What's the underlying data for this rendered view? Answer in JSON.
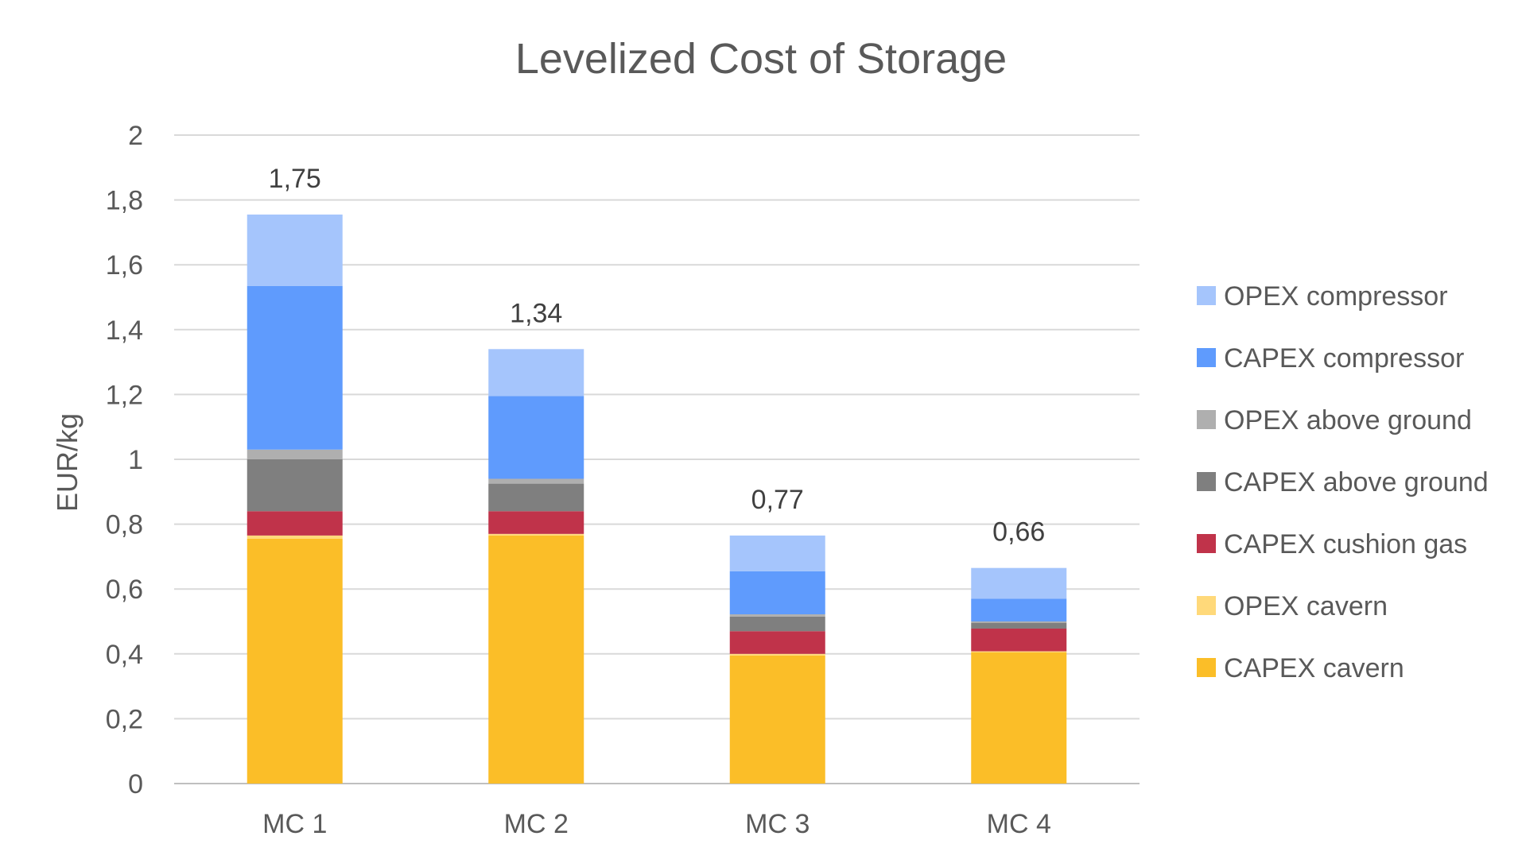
{
  "chart_data": {
    "type": "bar",
    "stacked": true,
    "title": "Levelized Cost of Storage",
    "xlabel": "",
    "ylabel": "EUR/kg",
    "ylim": [
      0,
      2
    ],
    "yticks": [
      "0",
      "0,2",
      "0,4",
      "0,6",
      "0,8",
      "1",
      "1,2",
      "1,4",
      "1,6",
      "1,8",
      "2"
    ],
    "ytick_values": [
      0,
      0.2,
      0.4,
      0.6,
      0.8,
      1.0,
      1.2,
      1.4,
      1.6,
      1.8,
      2.0
    ],
    "grid": true,
    "legend_position": "right",
    "categories": [
      "MC 1",
      "MC 2",
      "MC 3",
      "MC 4"
    ],
    "totals": [
      "1,75",
      "1,34",
      "0,77",
      "0,66"
    ],
    "series": [
      {
        "name": "CAPEX cavern",
        "color": "#FBBE28",
        "values": [
          0.755,
          0.765,
          0.395,
          0.405
        ]
      },
      {
        "name": "OPEX cavern",
        "color": "#FFD97A",
        "values": [
          0.01,
          0.005,
          0.005,
          0.003
        ]
      },
      {
        "name": "CAPEX cushion gas",
        "color": "#C0334A",
        "values": [
          0.075,
          0.07,
          0.07,
          0.07
        ]
      },
      {
        "name": "CAPEX above ground",
        "color": "#7F7F7F",
        "values": [
          0.16,
          0.085,
          0.045,
          0.018
        ]
      },
      {
        "name": "OPEX above ground",
        "color": "#AFAFAF",
        "values": [
          0.03,
          0.015,
          0.007,
          0.004
        ]
      },
      {
        "name": "CAPEX compressor",
        "color": "#5F9BFD",
        "values": [
          0.505,
          0.255,
          0.133,
          0.07
        ]
      },
      {
        "name": "OPEX compressor",
        "color": "#A5C5FC",
        "values": [
          0.22,
          0.145,
          0.11,
          0.095
        ]
      }
    ]
  }
}
